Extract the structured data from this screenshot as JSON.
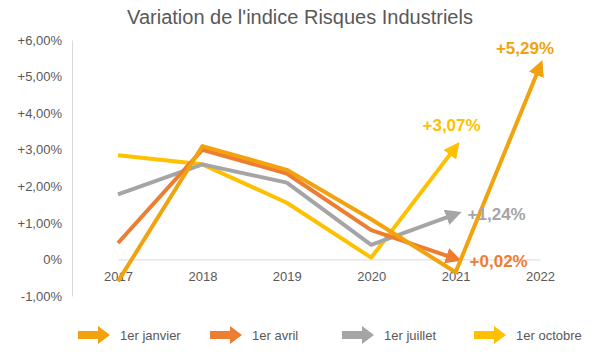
{
  "chart_data": {
    "type": "line",
    "title": "Variation de l'indice Risques Industriels",
    "categories": [
      "2017",
      "2018",
      "2019",
      "2020",
      "2021",
      "2022"
    ],
    "ylim": [
      -1,
      6
    ],
    "yticks": [
      {
        "value": -1,
        "label": "-1,00%"
      },
      {
        "value": 0,
        "label": "0%"
      },
      {
        "value": 1,
        "label": "+1,00%"
      },
      {
        "value": 2,
        "label": "+2,00%"
      },
      {
        "value": 3,
        "label": "+3,00%"
      },
      {
        "value": 4,
        "label": "+4,00%"
      },
      {
        "value": 5,
        "label": "+5,00%"
      },
      {
        "value": 6,
        "label": "+6,00%"
      }
    ],
    "grid": false,
    "legend": "bottom",
    "data_labels": true,
    "series": [
      {
        "name": "1er janvier",
        "color": "#F2A20C",
        "marker": "arrow",
        "values": [
          -0.6,
          3.1,
          2.45,
          1.1,
          -0.35,
          5.29
        ],
        "value_labels": [
          null,
          null,
          null,
          null,
          null,
          "+5,29%"
        ]
      },
      {
        "name": "1er avril",
        "color": "#ED7D31",
        "marker": "arrow",
        "values": [
          0.45,
          3.0,
          2.35,
          0.8,
          0.02,
          null
        ],
        "value_labels": [
          null,
          null,
          null,
          null,
          "+0,02%",
          null
        ]
      },
      {
        "name": "1er juillet",
        "color": "#A5A5A5",
        "marker": "arrow",
        "values": [
          1.78,
          2.6,
          2.1,
          0.4,
          1.24,
          null
        ],
        "value_labels": [
          null,
          null,
          null,
          null,
          "+1,24%",
          null
        ]
      },
      {
        "name": "1er octobre",
        "color": "#FFC000",
        "marker": "arrow",
        "values": [
          2.85,
          2.6,
          1.55,
          0.05,
          3.07,
          null
        ],
        "value_labels": [
          null,
          null,
          null,
          null,
          "+3,07%",
          null
        ]
      }
    ]
  }
}
